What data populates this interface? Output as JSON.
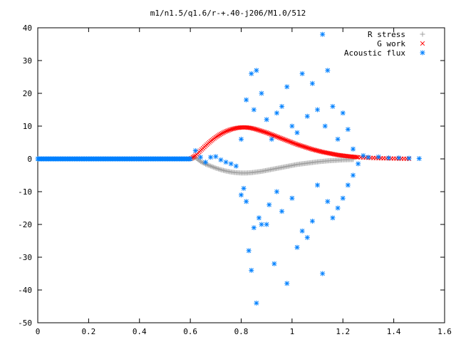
{
  "chart_data": {
    "type": "scatter",
    "title": "m1/n1.5/q1.6/r-+.40-j206/M1.0/512",
    "xlabel": "",
    "ylabel": "",
    "xlim": [
      0,
      1.6
    ],
    "ylim": [
      -50,
      40
    ],
    "x_ticks": [
      "0",
      "0.2",
      "0.4",
      "0.6",
      "0.8",
      "1",
      "1.2",
      "1.4",
      "1.6"
    ],
    "y_ticks": [
      "40",
      "30",
      "20",
      "10",
      "0",
      "-10",
      "-20",
      "-30",
      "-40",
      "-50"
    ],
    "grid": false,
    "legend_position": "top-right",
    "series": [
      {
        "name": "R stress",
        "marker": "plus",
        "color": "#a0a0a0",
        "points": [
          [
            0.6,
            0
          ],
          [
            0.62,
            0.4
          ],
          [
            0.64,
            -0.8
          ],
          [
            0.66,
            -1.6
          ],
          [
            0.68,
            -2.2
          ],
          [
            0.7,
            -2.8
          ],
          [
            0.72,
            -3.3
          ],
          [
            0.74,
            -3.7
          ],
          [
            0.76,
            -4.0
          ],
          [
            0.78,
            -4.2
          ],
          [
            0.8,
            -4.3
          ],
          [
            0.82,
            -4.3
          ],
          [
            0.84,
            -4.2
          ],
          [
            0.86,
            -4.0
          ],
          [
            0.88,
            -3.8
          ],
          [
            0.9,
            -3.5
          ],
          [
            0.92,
            -3.2
          ],
          [
            0.94,
            -2.9
          ],
          [
            0.96,
            -2.6
          ],
          [
            0.98,
            -2.3
          ],
          [
            1.0,
            -2.0
          ],
          [
            1.02,
            -1.7
          ],
          [
            1.04,
            -1.5
          ],
          [
            1.06,
            -1.3
          ],
          [
            1.08,
            -1.1
          ],
          [
            1.1,
            -0.9
          ],
          [
            1.12,
            -0.75
          ],
          [
            1.14,
            -0.6
          ],
          [
            1.16,
            -0.5
          ],
          [
            1.18,
            -0.4
          ],
          [
            1.2,
            -0.3
          ],
          [
            1.22,
            -0.25
          ],
          [
            1.24,
            -0.2
          ]
        ]
      },
      {
        "name": "G work",
        "marker": "cross",
        "color": "#ff0000",
        "points": [
          [
            0.6,
            0
          ],
          [
            0.62,
            1.0
          ],
          [
            0.64,
            2.5
          ],
          [
            0.66,
            4.0
          ],
          [
            0.68,
            5.4
          ],
          [
            0.7,
            6.6
          ],
          [
            0.72,
            7.6
          ],
          [
            0.74,
            8.4
          ],
          [
            0.76,
            9.0
          ],
          [
            0.78,
            9.4
          ],
          [
            0.8,
            9.6
          ],
          [
            0.82,
            9.6
          ],
          [
            0.84,
            9.4
          ],
          [
            0.86,
            9.0
          ],
          [
            0.88,
            8.5
          ],
          [
            0.9,
            8.0
          ],
          [
            0.92,
            7.4
          ],
          [
            0.94,
            6.8
          ],
          [
            0.96,
            6.2
          ],
          [
            0.98,
            5.6
          ],
          [
            1.0,
            5.0
          ],
          [
            1.02,
            4.4
          ],
          [
            1.04,
            3.9
          ],
          [
            1.06,
            3.4
          ],
          [
            1.08,
            2.9
          ],
          [
            1.1,
            2.5
          ],
          [
            1.12,
            2.1
          ],
          [
            1.14,
            1.8
          ],
          [
            1.16,
            1.5
          ],
          [
            1.18,
            1.2
          ],
          [
            1.2,
            1.0
          ],
          [
            1.22,
            0.8
          ],
          [
            1.24,
            0.65
          ],
          [
            1.26,
            0.5
          ],
          [
            1.3,
            0.35
          ],
          [
            1.34,
            0.22
          ],
          [
            1.38,
            0.14
          ],
          [
            1.42,
            0.08
          ],
          [
            1.46,
            0.03
          ]
        ]
      },
      {
        "name": "Acoustic flux",
        "marker": "star",
        "color": "#0080ff",
        "baseline_x": [
          0.0,
          0.04,
          0.08,
          0.12,
          0.16,
          0.2,
          0.24,
          0.28,
          0.32,
          0.36,
          0.4,
          0.44,
          0.48,
          0.52,
          0.56,
          0.6
        ],
        "points": [
          [
            0.6,
            0
          ],
          [
            0.62,
            2.5
          ],
          [
            0.64,
            0.5
          ],
          [
            0.66,
            -1.0
          ],
          [
            0.68,
            0.5
          ],
          [
            0.7,
            0.7
          ],
          [
            0.72,
            -0.3
          ],
          [
            0.74,
            -1.0
          ],
          [
            0.76,
            -1.5
          ],
          [
            0.78,
            -2.2
          ],
          [
            0.8,
            -11
          ],
          [
            0.81,
            -9
          ],
          [
            0.82,
            -13
          ],
          [
            0.83,
            -28
          ],
          [
            0.84,
            -34
          ],
          [
            0.85,
            -21
          ],
          [
            0.86,
            -44
          ],
          [
            0.87,
            -18
          ],
          [
            0.88,
            -20
          ],
          [
            0.9,
            -20
          ],
          [
            0.91,
            -14
          ],
          [
            0.93,
            -32
          ],
          [
            0.94,
            -10
          ],
          [
            0.96,
            -16
          ],
          [
            0.98,
            -38
          ],
          [
            1.0,
            -12
          ],
          [
            1.02,
            -27
          ],
          [
            1.04,
            -22
          ],
          [
            1.06,
            -24
          ],
          [
            1.08,
            -19
          ],
          [
            1.1,
            -8
          ],
          [
            1.12,
            -35
          ],
          [
            1.14,
            -13
          ],
          [
            1.16,
            -18
          ],
          [
            1.18,
            -15
          ],
          [
            1.2,
            -12
          ],
          [
            1.22,
            -8
          ],
          [
            1.24,
            -5
          ],
          [
            0.8,
            6
          ],
          [
            0.82,
            18
          ],
          [
            0.84,
            26
          ],
          [
            0.85,
            15
          ],
          [
            0.86,
            27
          ],
          [
            0.88,
            20
          ],
          [
            0.9,
            12
          ],
          [
            0.92,
            6
          ],
          [
            0.94,
            14
          ],
          [
            0.96,
            16
          ],
          [
            0.98,
            22
          ],
          [
            1.0,
            10
          ],
          [
            1.02,
            8
          ],
          [
            1.04,
            26
          ],
          [
            1.06,
            13
          ],
          [
            1.08,
            23
          ],
          [
            1.1,
            15
          ],
          [
            1.12,
            38
          ],
          [
            1.13,
            10
          ],
          [
            1.14,
            27
          ],
          [
            1.16,
            16
          ],
          [
            1.18,
            6
          ],
          [
            1.2,
            14
          ],
          [
            1.22,
            9
          ],
          [
            1.24,
            3
          ],
          [
            1.26,
            -1.5
          ],
          [
            1.28,
            1.0
          ],
          [
            1.3,
            0.5
          ],
          [
            1.34,
            0.6
          ],
          [
            1.38,
            0.3
          ],
          [
            1.42,
            0.3
          ],
          [
            1.46,
            0.2
          ],
          [
            1.5,
            0.1
          ]
        ]
      }
    ]
  }
}
